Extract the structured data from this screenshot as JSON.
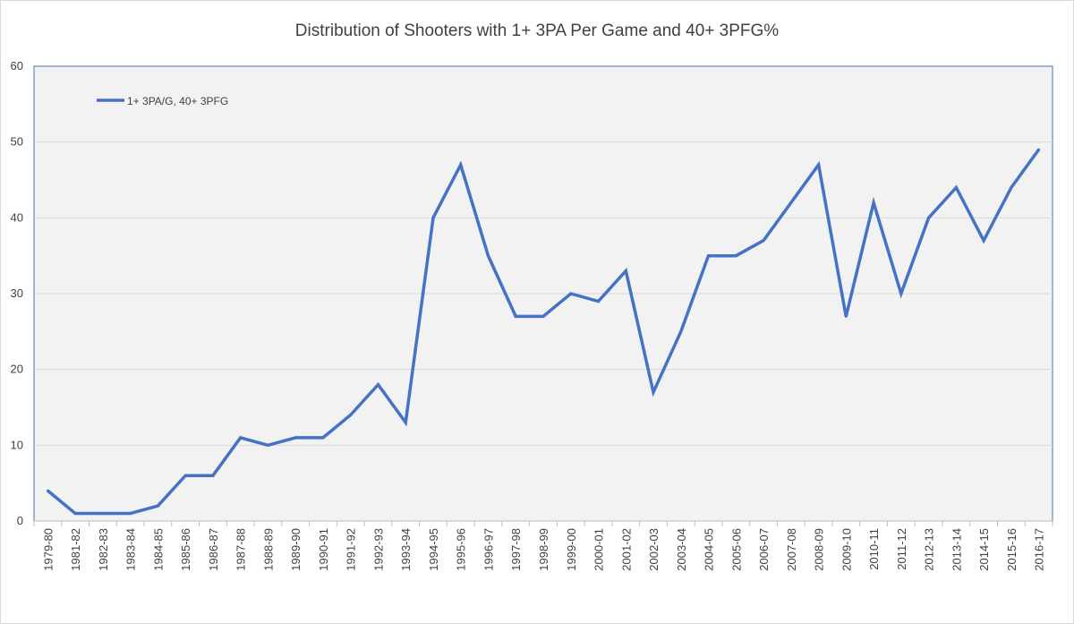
{
  "chart_data": {
    "type": "line",
    "title": "Distribution of Shooters with 1+ 3PA Per Game and 40+ 3PFG%",
    "xlabel": "",
    "ylabel": "",
    "ylim": [
      0,
      60
    ],
    "yticks": [
      "0",
      "10",
      "20",
      "30",
      "40",
      "50",
      "60"
    ],
    "grid": true,
    "legend_position": "top-left",
    "categories": [
      "1979-80",
      "1981-82",
      "1982-83",
      "1983-84",
      "1984-85",
      "1985-86",
      "1986-87",
      "1987-88",
      "1988-89",
      "1989-90",
      "1990-91",
      "1991-92",
      "1992-93",
      "1993-94",
      "1994-95",
      "1995-96",
      "1996-97",
      "1997-98",
      "1998-99",
      "1999-00",
      "2000-01",
      "2001-02",
      "2002-03",
      "2003-04",
      "2004-05",
      "2005-06",
      "2006-07",
      "2007-08",
      "2008-09",
      "2009-10",
      "2010-11",
      "2011-12",
      "2012-13",
      "2013-14",
      "2014-15",
      "2015-16",
      "2016-17"
    ],
    "series": [
      {
        "name": "1+ 3PA/G, 40+ 3PFG",
        "color": "#4472c4",
        "values": [
          4,
          1,
          1,
          1,
          2,
          6,
          6,
          11,
          10,
          11,
          11,
          14,
          18,
          13,
          40,
          47,
          35,
          27,
          27,
          30,
          29,
          33,
          17,
          25,
          35,
          35,
          37,
          42,
          47,
          27,
          42,
          30,
          40,
          44,
          37,
          44,
          49
        ]
      }
    ]
  }
}
